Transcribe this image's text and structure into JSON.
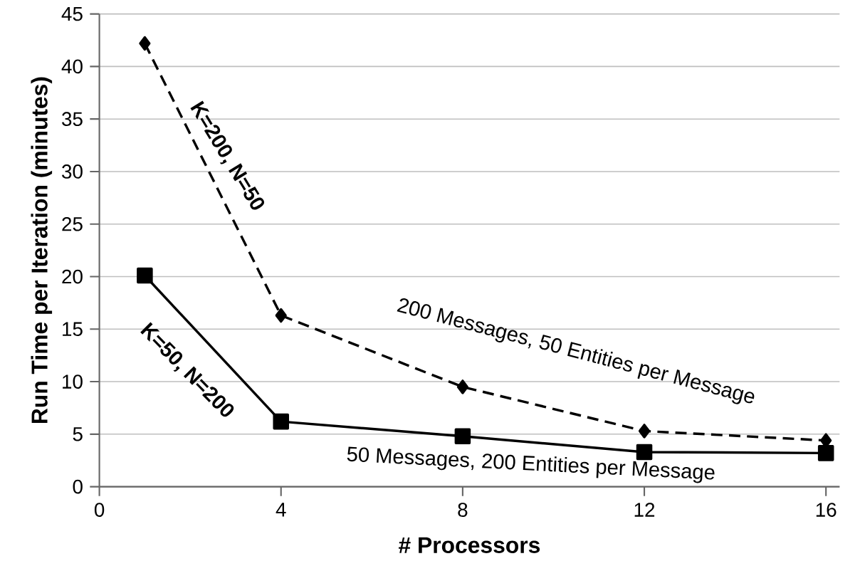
{
  "chart_data": {
    "type": "line",
    "xlabel": "# Processors",
    "ylabel": "Run Time per Iteration (minutes)",
    "x": [
      1,
      4,
      8,
      12,
      16
    ],
    "series": [
      {
        "color": "#000000",
        "values": [
          42.2,
          16.3,
          9.5,
          5.3,
          4.4
        ],
        "marker": "diamond",
        "line_style": "dashed"
      },
      {
        "color": "#000000",
        "values": [
          20.1,
          6.2,
          4.8,
          3.3,
          3.2
        ],
        "marker": "square",
        "line_style": "solid"
      }
    ],
    "xlim": [
      0,
      16.3
    ],
    "ylim": [
      0,
      45
    ],
    "xticks": [
      0,
      4,
      8,
      12,
      16
    ],
    "yticks": [
      0,
      5,
      10,
      15,
      20,
      25,
      30,
      35,
      40,
      45
    ],
    "grid": "y",
    "annotations": [
      "K=200, N=50",
      "K=50, N=200",
      "200 Messages, 50 Entities per Message",
      "50 Messages, 200 Entities per Message"
    ]
  }
}
